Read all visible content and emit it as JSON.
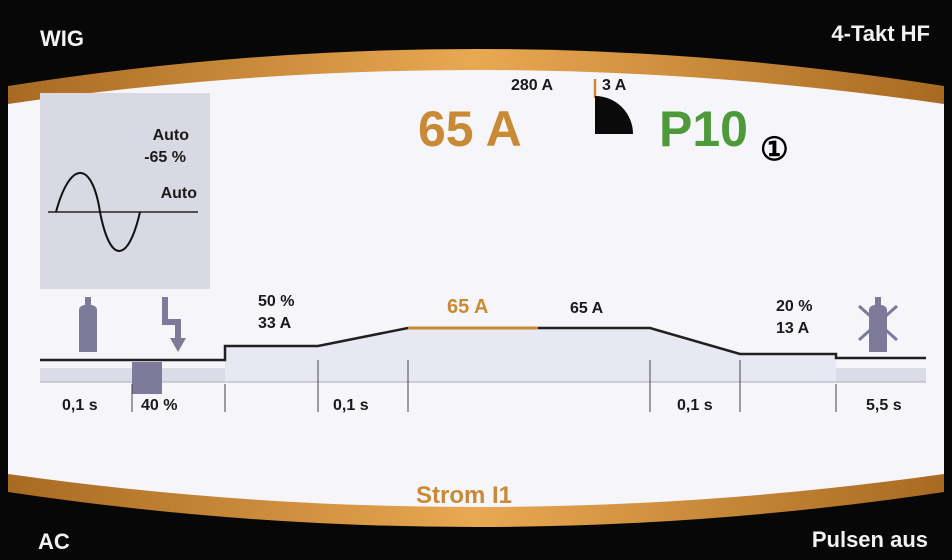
{
  "corners": {
    "top_left": "WIG",
    "top_right": "4-Takt HF",
    "bottom_left": "AC",
    "bottom_right": "Pulsen aus"
  },
  "header": {
    "current_max": "280 A",
    "current_min": "3 A",
    "main_current": "65 A",
    "program": "P10",
    "marker": "①"
  },
  "waveform_box": {
    "balance_mode": "Auto",
    "balance_value": "-65 %",
    "frequency_mode": "Auto"
  },
  "sequence": {
    "icons": [
      "gas-bottle-icon",
      "hf-ignition-icon",
      "gas-postflow-icon"
    ],
    "start_current_pct": "50 %",
    "start_current": "33 A",
    "main_current_label": "65 A",
    "second_current": "65 A",
    "end_current_pct": "20 %",
    "end_current": "13 A",
    "times": [
      "0,1 s",
      "40 %",
      "0,1 s",
      "0,1 s",
      "5,5 s"
    ]
  },
  "footer": {
    "selected_param": "Strom I1"
  },
  "colors": {
    "accent_orange": "#c98a35",
    "program_green": "#4e9a3a",
    "background": "#070707",
    "panel": "#f6f6fa"
  }
}
